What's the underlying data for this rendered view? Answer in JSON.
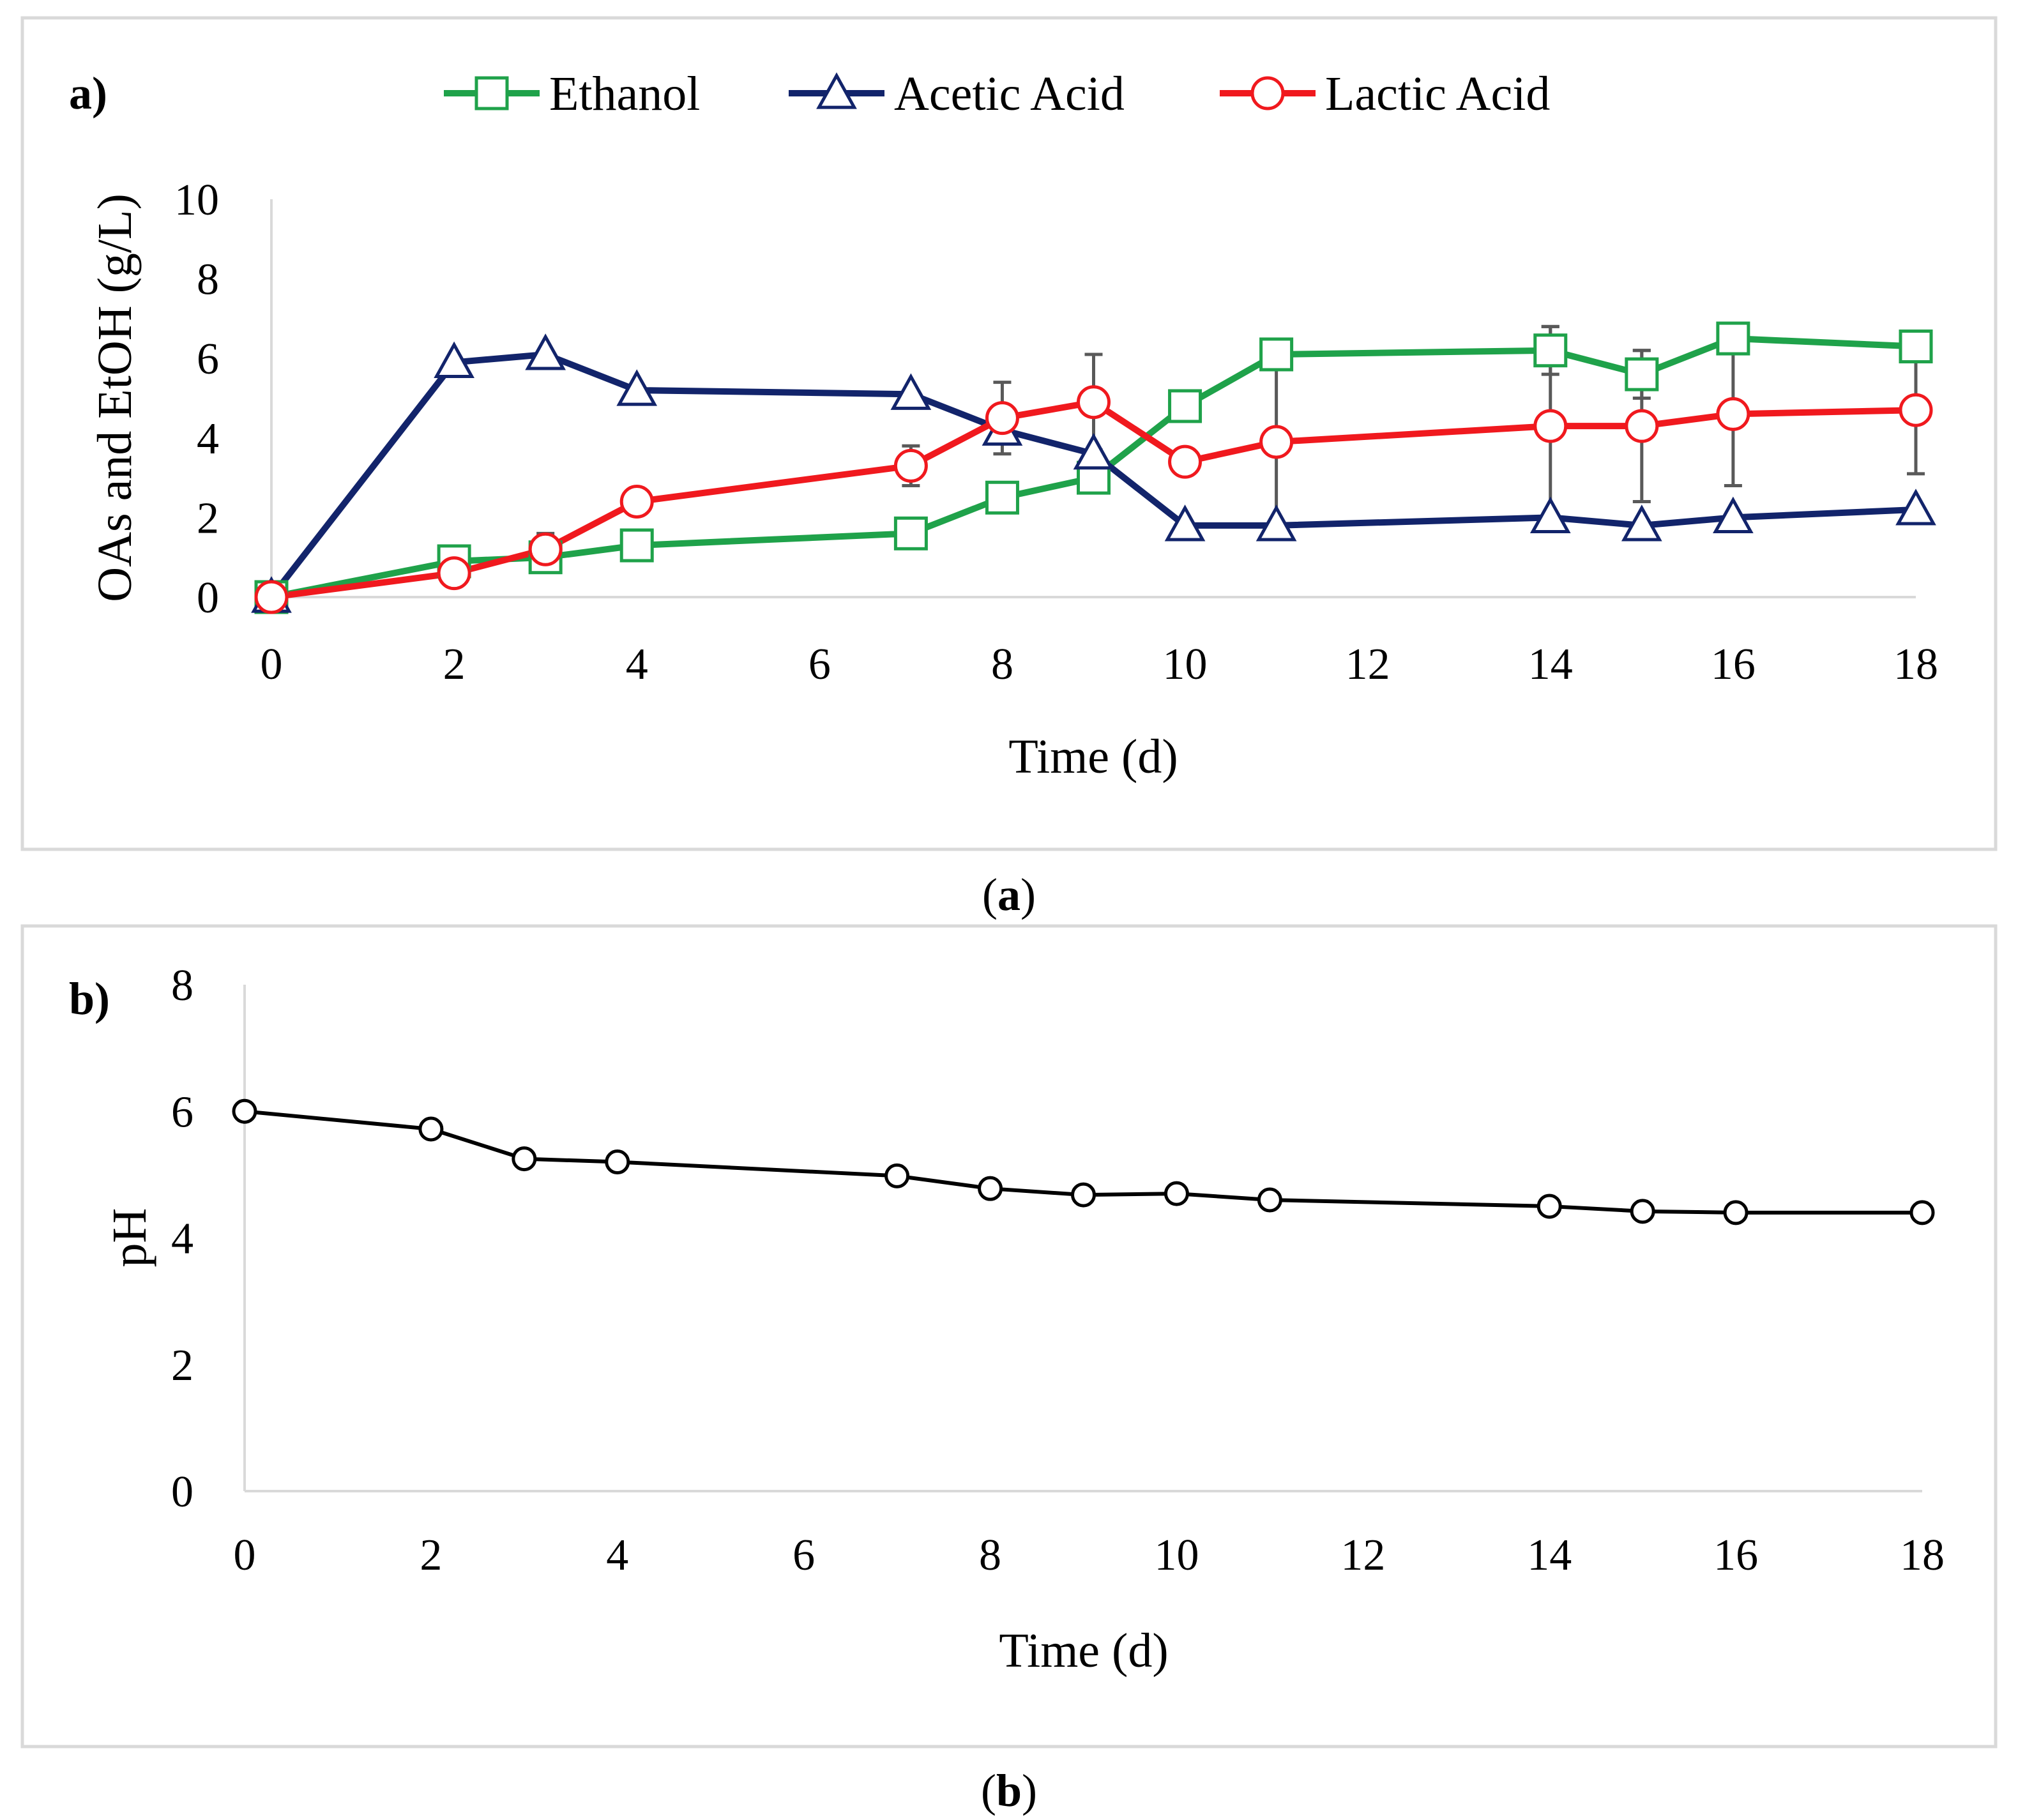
{
  "chart_data": [
    {
      "type": "line",
      "panel_label": "a)",
      "caption_letter": "a",
      "xlabel": "Time (d)",
      "ylabel": "OAs and EtOH (g/L)",
      "xlim": [
        0,
        18
      ],
      "ylim": [
        0,
        10
      ],
      "xticks": [
        0,
        2,
        4,
        6,
        8,
        10,
        12,
        14,
        16,
        18
      ],
      "yticks": [
        0,
        2,
        4,
        6,
        8,
        10
      ],
      "legend": "top",
      "x": [
        0,
        2,
        3,
        4,
        7,
        8,
        9,
        10,
        11,
        14,
        15,
        16,
        18
      ],
      "series": [
        {
          "name": "Ethanol",
          "color": "#1fa24a",
          "marker": "square",
          "values": [
            0,
            0.9,
            1.0,
            1.3,
            1.6,
            2.5,
            3.0,
            4.8,
            6.1,
            6.2,
            5.6,
            6.5,
            6.3
          ],
          "errors": [
            0,
            0,
            0,
            0,
            0,
            0,
            0,
            0,
            0,
            0.6,
            0.6,
            0,
            0
          ]
        },
        {
          "name": "Acetic Acid",
          "color": "#12246b",
          "marker": "triangle",
          "values": [
            0,
            5.9,
            6.1,
            5.2,
            5.1,
            4.2,
            3.6,
            1.8,
            1.8,
            2.0,
            1.8,
            2.0,
            2.2
          ],
          "errors": [
            0,
            0,
            0,
            0,
            0,
            0,
            0,
            0,
            0,
            0,
            0,
            0,
            0
          ]
        },
        {
          "name": "Lactic Acid",
          "color": "#f0191e",
          "marker": "circle",
          "values": [
            0,
            0.6,
            1.2,
            2.4,
            3.3,
            4.5,
            4.9,
            3.4,
            3.9,
            4.3,
            4.3,
            4.6,
            4.7
          ],
          "errors": [
            0,
            0,
            0.4,
            0,
            0.5,
            0.9,
            1.2,
            0,
            2.4,
            2.5,
            1.9,
            1.8,
            1.6
          ]
        }
      ]
    },
    {
      "type": "line",
      "panel_label": "b)",
      "caption_letter": "b",
      "xlabel": "Time (d)",
      "ylabel": "pH",
      "xlim": [
        0,
        18
      ],
      "ylim": [
        0,
        8
      ],
      "xticks": [
        0,
        2,
        4,
        6,
        8,
        10,
        12,
        14,
        16,
        18
      ],
      "yticks": [
        0,
        2,
        4,
        6,
        8
      ],
      "legend": "none",
      "x": [
        0,
        2,
        3,
        4,
        7,
        8,
        9,
        10,
        11,
        14,
        15,
        16,
        18
      ],
      "series": [
        {
          "name": "pH",
          "color": "#000000",
          "marker": "circle",
          "values": [
            6.0,
            5.72,
            5.25,
            5.2,
            4.98,
            4.78,
            4.68,
            4.7,
            4.6,
            4.5,
            4.42,
            4.4,
            4.4
          ]
        }
      ]
    }
  ]
}
